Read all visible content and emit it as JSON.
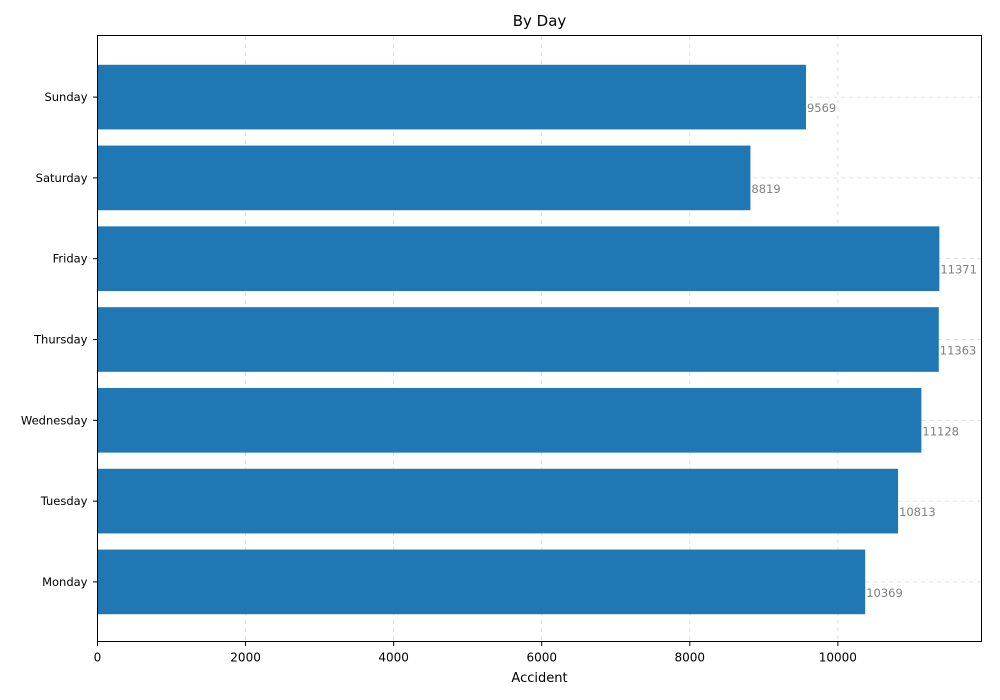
{
  "chart_data": {
    "type": "bar",
    "orientation": "horizontal",
    "title": "By Day",
    "xlabel": "Accident",
    "ylabel": "",
    "categories": [
      "Monday",
      "Tuesday",
      "Wednesday",
      "Thursday",
      "Friday",
      "Saturday",
      "Sunday"
    ],
    "values": [
      10369,
      10813,
      11128,
      11363,
      11371,
      8819,
      9569
    ],
    "xlim": [
      0,
      11940
    ],
    "xticks": [
      0,
      2000,
      4000,
      6000,
      8000,
      10000
    ],
    "grid": true,
    "bar_color": "#1f77b4",
    "value_label_color": "#808080"
  }
}
